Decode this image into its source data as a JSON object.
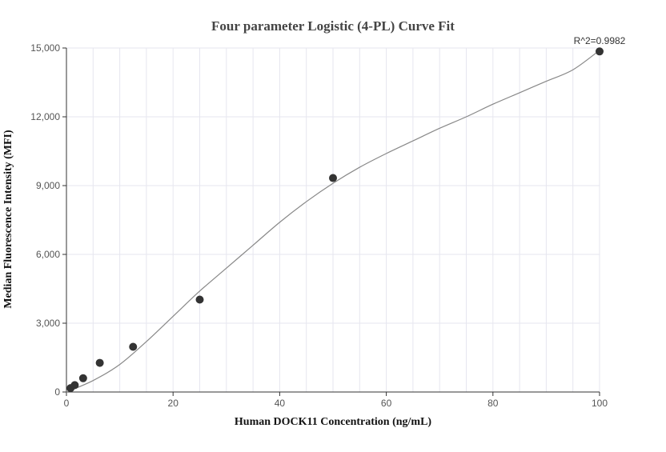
{
  "chart_data": {
    "type": "scatter",
    "title": "Four parameter Logistic (4-PL) Curve Fit",
    "xlabel": "Human DOCK11 Concentration (ng/mL)",
    "ylabel": "Median Fluorescence Intensity (MFI)",
    "xlim": [
      0,
      100
    ],
    "ylim": [
      0,
      15000
    ],
    "x_ticks": [
      0,
      20,
      40,
      60,
      80,
      100
    ],
    "y_ticks": [
      0,
      3000,
      6000,
      9000,
      12000,
      15000
    ],
    "x_tick_labels": [
      "0",
      "20",
      "40",
      "60",
      "80",
      "100"
    ],
    "y_tick_labels": [
      "0",
      "3,000",
      "6,000",
      "9,000",
      "12,000",
      "15,000"
    ],
    "grid": true,
    "series": [
      {
        "x": [
          0.78,
          1.56,
          3.13,
          6.25,
          12.5,
          25,
          50,
          100
        ],
        "y": [
          170,
          300,
          600,
          1270,
          1970,
          4030,
          9330,
          14850
        ]
      }
    ],
    "fit_curve": {
      "x": [
        0,
        5,
        10,
        15,
        20,
        25,
        30,
        35,
        40,
        45,
        50,
        55,
        60,
        65,
        70,
        75,
        80,
        85,
        90,
        95,
        100
      ],
      "y": [
        0,
        500,
        1200,
        2200,
        3300,
        4400,
        5400,
        6400,
        7400,
        8300,
        9100,
        9800,
        10400,
        10950,
        11500,
        12000,
        12550,
        13050,
        13550,
        14050,
        14900
      ]
    },
    "annotation": "R^2=0.9982",
    "colors": {
      "point": "#333333",
      "curve": "#888888",
      "grid": "#e6e6ef",
      "axis": "#333333"
    }
  }
}
